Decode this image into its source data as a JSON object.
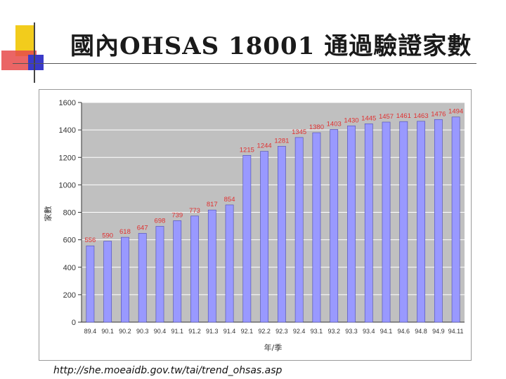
{
  "slide": {
    "title": "國內OHSAS 18001 通過驗證家數",
    "source": "http://she.moeaidb.gov.tw/tai/trend_ohsas.asp"
  },
  "colors": {
    "bar": "#9999ff",
    "bar_edge": "#4a4ab0",
    "plot_bg": "#c0c0c0",
    "data_label": "#e03030",
    "deco_yellow": "#f2cc1c",
    "deco_red": "#e64a4a",
    "deco_blue": "#3a3ac8"
  },
  "chart_data": {
    "type": "bar",
    "categories": [
      "89.4",
      "90.1",
      "90.2",
      "90.3",
      "90.4",
      "91.1",
      "91.2",
      "91.3",
      "91.4",
      "92.1",
      "92.2",
      "92.3",
      "92.4",
      "93.1",
      "93.2",
      "93.3",
      "93.4",
      "94.1",
      "94.6",
      "94.8",
      "94.9",
      "94.11"
    ],
    "values": [
      556,
      590,
      618,
      647,
      698,
      739,
      773,
      817,
      854,
      1215,
      1244,
      1281,
      1345,
      1380,
      1403,
      1430,
      1445,
      1457,
      1461,
      1463,
      1476,
      1494
    ],
    "xlabel": "年/季",
    "ylabel": "家數",
    "ylim": [
      0,
      1600
    ],
    "yticks": [
      0,
      200,
      400,
      600,
      800,
      1000,
      1200,
      1400,
      1600
    ],
    "grid": true,
    "legend": "none"
  }
}
